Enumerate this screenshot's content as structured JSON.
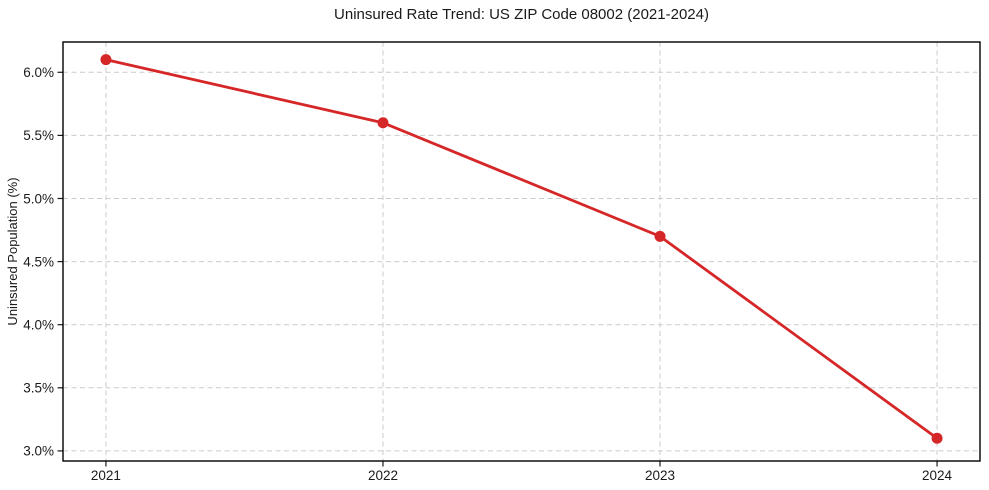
{
  "title": "Uninsured Rate Trend: US ZIP Code 08002 (2021-2024)",
  "colors": {
    "line": "#d62728",
    "marker": "#d62728",
    "grid": "#cccccc",
    "spine": "#000000",
    "tick": "#1a1a1a",
    "text": "#1a1a1a",
    "background": "#ffffff"
  },
  "chart_data": {
    "type": "line",
    "title": "Uninsured Rate Trend: US ZIP Code 08002 (2021-2024)",
    "series_name": "uninsured-rate",
    "x": [
      2021,
      2022,
      2023,
      2024
    ],
    "values": [
      6.1,
      5.6,
      4.7,
      3.1
    ],
    "xlabel": "",
    "ylabel": "Uninsured Population (%)",
    "xlim": [
      2020.845,
      2024.155
    ],
    "ylim": [
      2.92,
      6.24
    ],
    "xticks": [
      2021,
      2022,
      2023,
      2024
    ],
    "xtick_labels": [
      "2021",
      "2022",
      "2023",
      "2024"
    ],
    "yticks": [
      3.0,
      3.5,
      4.0,
      4.5,
      5.0,
      5.5,
      6.0
    ],
    "ytick_labels": [
      "3.0%",
      "3.5%",
      "4.0%",
      "4.5%",
      "5.0%",
      "5.5%",
      "6.0%"
    ],
    "grid": true,
    "grid_style": "dashed",
    "legend": false,
    "marker": "circle",
    "line_width": 2.8,
    "marker_radius": 5.5
  }
}
